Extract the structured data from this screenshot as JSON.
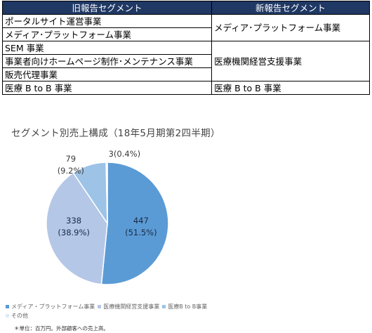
{
  "table": {
    "header_old": "旧報告セグメント",
    "header_new": "新報告セグメント",
    "old": [
      "ポータルサイト運営事業",
      "メディア･プラットフォーム事業",
      "SEM 事業",
      "事業者向けホームページ制作･メンテナンス事業",
      "販売代理事業",
      "医療 B to B 事業"
    ],
    "new": [
      "メディア･プラットフォーム事業",
      "医療機関経営支援事業",
      "医療 B to B 事業"
    ]
  },
  "chart_data": {
    "type": "pie",
    "title": "セグメント別売上構成（18年5月期第2四半期）",
    "slices": [
      {
        "name": "メディア・プラットフォーム事業",
        "value": 447,
        "percent": "51.5%",
        "color": "#5b9bd5"
      },
      {
        "name": "医療機関経営支援事業",
        "value": 338,
        "percent": "38.9%",
        "color": "#b4c7e7"
      },
      {
        "name": "医療B to B事業",
        "value": 79,
        "percent": "9.2%",
        "color": "#9dc3e6"
      },
      {
        "name": "その他",
        "value": 3,
        "percent": "0.4%",
        "color": "#deebf7"
      }
    ],
    "legend_position": "bottom-left",
    "footnote": "＊単位：百万円。外部顧客への売上高。"
  }
}
